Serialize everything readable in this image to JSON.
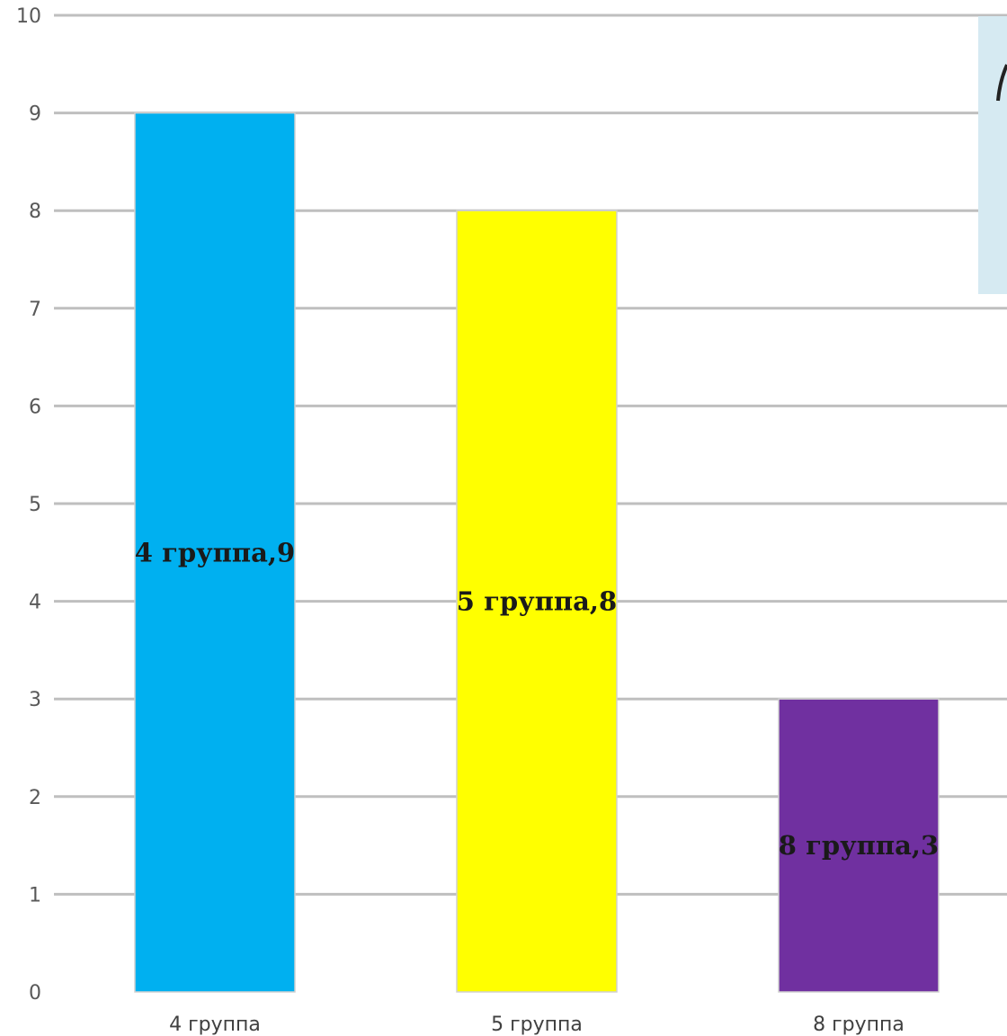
{
  "chart_data": {
    "type": "bar",
    "categories": [
      "4 группа",
      "5 группа",
      "8 группа"
    ],
    "values": [
      9,
      8,
      3
    ],
    "data_labels": [
      "4 группа,9",
      "5 группа,8",
      "8 группа,3"
    ],
    "title": "",
    "xlabel": "",
    "ylabel": "",
    "ylim": [
      0,
      10
    ],
    "yticks": [
      "0",
      "1",
      "2",
      "3",
      "4",
      "5",
      "6",
      "7",
      "8",
      "9",
      "10"
    ],
    "grid": true,
    "legend": "none",
    "colors": [
      "#00b0f0",
      "#ffff00",
      "#7030a0"
    ],
    "label_colors": [
      "#1a1a1a",
      "#1a1a1a",
      "#1a1a1a"
    ]
  },
  "overlay": {
    "panel_color": "#d6eaf2"
  }
}
